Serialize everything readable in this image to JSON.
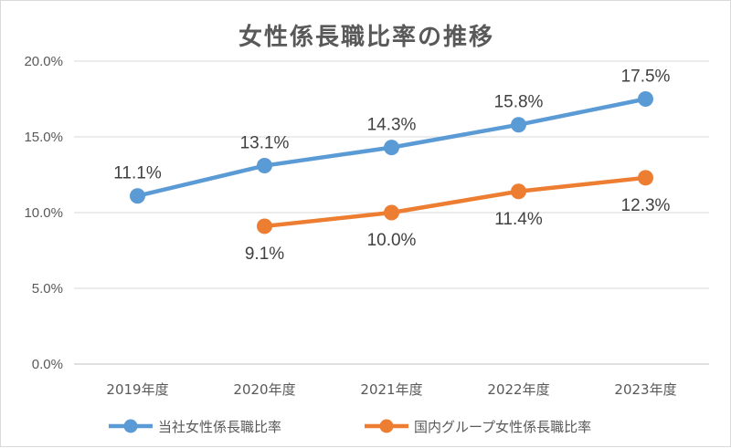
{
  "chart_data": {
    "type": "line",
    "title": "女性係長職比率の推移",
    "categories": [
      "2019年度",
      "2020年度",
      "2021年度",
      "2022年度",
      "2023年度"
    ],
    "ylim": [
      0,
      20
    ],
    "yticks": [
      "0.0%",
      "5.0%",
      "10.0%",
      "15.0%",
      "20.0%"
    ],
    "ytick_values": [
      0,
      5,
      10,
      15,
      20
    ],
    "grid": true,
    "legend_position": "bottom",
    "series": [
      {
        "name": "当社女性係長職比率",
        "color": "#5b9bd5",
        "values": [
          11.1,
          13.1,
          14.3,
          15.8,
          17.5
        ],
        "labels": [
          "11.1%",
          "13.1%",
          "14.3%",
          "15.8%",
          "17.5%"
        ],
        "label_position": "above"
      },
      {
        "name": "国内グループ女性係長職比率",
        "color": "#ed7d31",
        "values": [
          null,
          9.1,
          10.0,
          11.4,
          12.3
        ],
        "labels": [
          null,
          "9.1%",
          "10.0%",
          "11.4%",
          "12.3%"
        ],
        "label_position": "below"
      }
    ]
  }
}
